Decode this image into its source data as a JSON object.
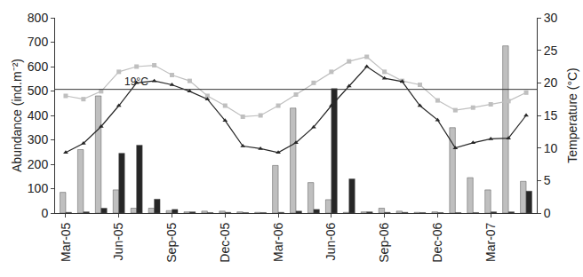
{
  "chart_data": {
    "type": "bar",
    "categories": [
      "Mar-05",
      null,
      null,
      "Jun-05",
      null,
      null,
      "Sep-05",
      null,
      null,
      "Dec-05",
      null,
      null,
      "Mar-06",
      null,
      null,
      "Jun-06",
      null,
      null,
      "Sep-06",
      null,
      null,
      "Dec-06",
      null,
      null,
      "Mar-07",
      null,
      null
    ],
    "series": [
      {
        "type": "bar",
        "color": "#bfbfbf",
        "values": [
          85,
          260,
          480,
          95,
          20,
          20,
          10,
          5,
          8,
          8,
          5,
          3,
          195,
          430,
          125,
          55,
          3,
          5,
          20,
          8,
          3,
          5,
          350,
          145,
          95,
          685,
          130
        ]
      },
      {
        "type": "bar",
        "color": "#262626",
        "values": [
          3,
          5,
          20,
          245,
          278,
          57,
          15,
          5,
          2,
          3,
          2,
          2,
          3,
          8,
          15,
          510,
          140,
          5,
          3,
          3,
          2,
          2,
          2,
          2,
          5,
          5,
          90
        ]
      },
      {
        "type": "line",
        "axis": "y2",
        "color": "#bfbfbf",
        "marker": "square",
        "values": [
          18,
          17.5,
          18.7,
          21.7,
          22.5,
          22.7,
          21.2,
          20.3,
          18,
          16.5,
          14.8,
          15,
          16.5,
          18.2,
          20,
          21.7,
          23.3,
          24,
          21.7,
          20.3,
          19.7,
          17.3,
          15.8,
          16.2,
          16.7,
          17.2,
          18.5
        ]
      },
      {
        "type": "line",
        "axis": "y2",
        "color": "#262626",
        "marker": "triangle",
        "values": [
          9.3,
          10.7,
          13.3,
          16.5,
          20,
          20.3,
          19.7,
          18.7,
          17.5,
          14.2,
          10.3,
          9.9,
          9.3,
          10.8,
          13.2,
          16.5,
          19.5,
          22.5,
          20.7,
          20.2,
          16.5,
          14.3,
          10,
          10.8,
          11.4,
          11.5,
          15
        ]
      }
    ],
    "y_label": "Abundance (ind.m⁻²)",
    "y2_label": "Temperature (°C)",
    "ylim": [
      0,
      800
    ],
    "yticks": [
      0,
      100,
      200,
      300,
      400,
      500,
      600,
      700,
      800
    ],
    "y2lim": [
      0,
      30
    ],
    "y2ticks": [
      0,
      5,
      10,
      15,
      20,
      25,
      30
    ],
    "reference_line": {
      "value": 19,
      "label": "19°C",
      "axis": "y2"
    },
    "grid": false
  }
}
